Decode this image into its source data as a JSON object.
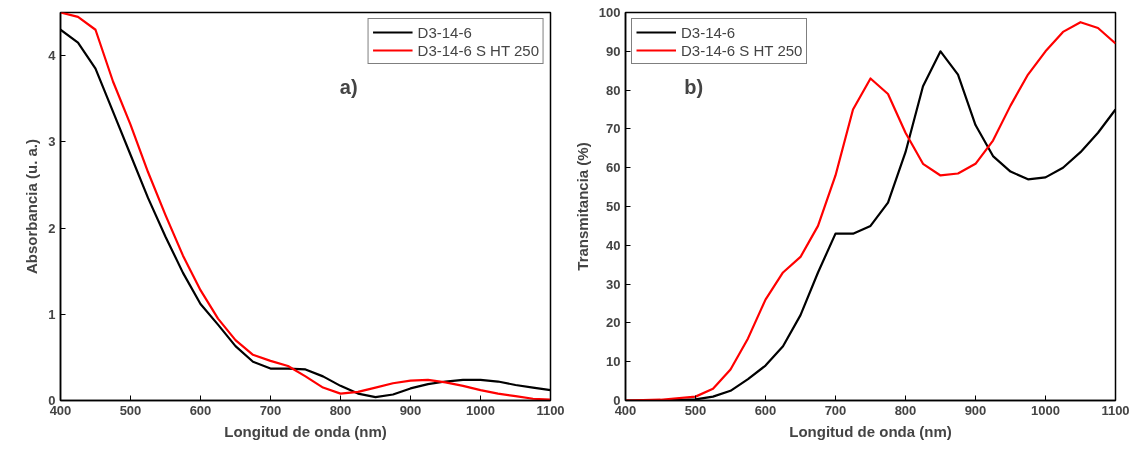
{
  "chart_data": [
    {
      "type": "line",
      "xlabel": "Longitud de onda (nm)",
      "ylabel": "Absorbancia (u. a.)",
      "annotations": [
        "a)"
      ],
      "x": [
        400,
        425,
        450,
        475,
        500,
        525,
        550,
        575,
        600,
        625,
        650,
        675,
        700,
        725,
        750,
        775,
        800,
        825,
        850,
        875,
        900,
        925,
        950,
        975,
        1000,
        1025,
        1050,
        1075,
        1100
      ],
      "xlim": [
        400,
        1100
      ],
      "xticks": [
        400,
        500,
        600,
        700,
        800,
        900,
        1000,
        1100
      ],
      "ylim": [
        0,
        4.5
      ],
      "yticks": [
        0,
        1,
        2,
        3,
        4
      ],
      "legend": "top right",
      "grid": false,
      "series": [
        {
          "name": "D3-14-6",
          "color": "#000000",
          "values": [
            4.3,
            4.15,
            3.85,
            3.35,
            2.85,
            2.35,
            1.9,
            1.48,
            1.12,
            0.88,
            0.63,
            0.45,
            0.37,
            0.37,
            0.36,
            0.28,
            0.17,
            0.08,
            0.04,
            0.07,
            0.14,
            0.19,
            0.22,
            0.24,
            0.24,
            0.22,
            0.18,
            0.15,
            0.12
          ]
        },
        {
          "name": "D3-14-6 S HT 250",
          "color": "#ff0000",
          "values": [
            4.5,
            4.45,
            4.3,
            3.7,
            3.2,
            2.65,
            2.15,
            1.68,
            1.28,
            0.95,
            0.7,
            0.53,
            0.46,
            0.4,
            0.28,
            0.15,
            0.08,
            0.1,
            0.15,
            0.2,
            0.23,
            0.24,
            0.21,
            0.17,
            0.12,
            0.08,
            0.05,
            0.02,
            0.01
          ]
        }
      ]
    },
    {
      "type": "line",
      "xlabel": "Longitud de onda (nm)",
      "ylabel": "Transmitancia (%)",
      "annotations": [
        "b)"
      ],
      "x": [
        400,
        450,
        500,
        525,
        550,
        575,
        600,
        625,
        650,
        675,
        700,
        725,
        750,
        775,
        800,
        825,
        850,
        875,
        900,
        925,
        950,
        975,
        1000,
        1025,
        1050,
        1075,
        1100
      ],
      "xlim": [
        400,
        1100
      ],
      "xticks": [
        400,
        500,
        600,
        700,
        800,
        900,
        1000,
        1100
      ],
      "ylim": [
        0,
        100
      ],
      "yticks": [
        0,
        10,
        20,
        30,
        40,
        50,
        60,
        70,
        80,
        90,
        100
      ],
      "legend": "top left",
      "grid": false,
      "series": [
        {
          "name": "D3-14-6",
          "color": "#000000",
          "values": [
            0,
            0,
            0.3,
            1,
            2.5,
            5.5,
            9,
            14,
            22,
            33,
            43,
            43,
            45,
            51,
            64,
            81,
            90,
            84,
            71,
            63,
            59,
            57,
            57.5,
            60,
            64,
            69,
            75
          ]
        },
        {
          "name": "D3-14-6 S HT 250",
          "color": "#ff0000",
          "values": [
            0,
            0.2,
            1,
            3,
            8,
            16,
            26,
            33,
            37,
            45,
            58,
            75,
            83,
            79,
            69,
            61,
            58,
            58.5,
            61,
            67,
            76,
            84,
            90,
            95,
            97.5,
            96,
            92
          ]
        }
      ]
    }
  ]
}
